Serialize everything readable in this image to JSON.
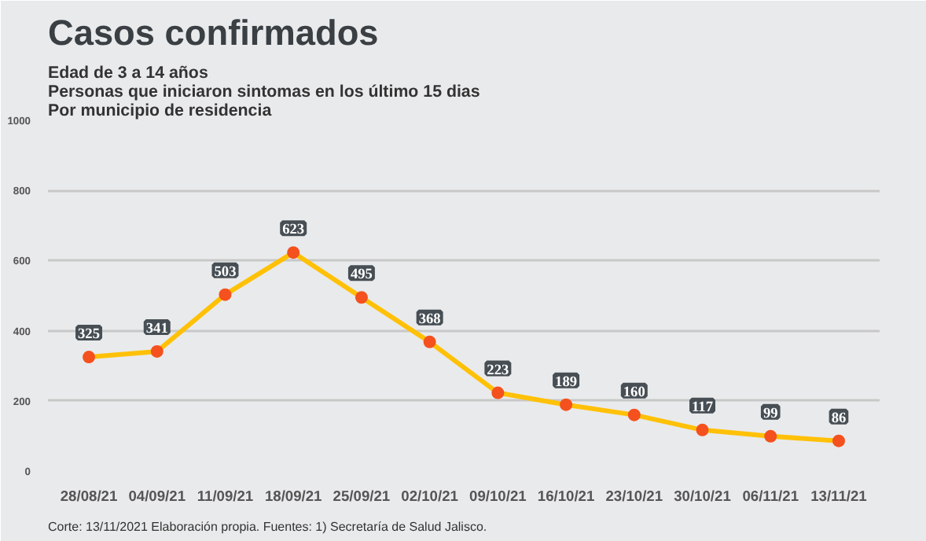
{
  "chart_data": {
    "type": "line",
    "title": "Casos confirmados",
    "subtitle": "Edad de 3 a 14 años\nPersonas que iniciaron sintomas en los último 15 dias\nPor municipio de residencia",
    "categories": [
      "28/08/21",
      "04/09/21",
      "11/09/21",
      "18/09/21",
      "25/09/21",
      "02/10/21",
      "09/10/21",
      "16/10/21",
      "23/10/21",
      "30/10/21",
      "06/11/21",
      "13/11/21"
    ],
    "series": [
      {
        "color": "#ffc107",
        "values": [
          325,
          341,
          503,
          623,
          495,
          368,
          223,
          189,
          160,
          117,
          99,
          86
        ]
      }
    ],
    "marker": "circle",
    "ylim": [
      0,
      1000
    ],
    "yticks": [
      0,
      200,
      400,
      600,
      800,
      1000
    ],
    "grid": "y",
    "data_labels": true,
    "annotations": [
      "Corte: 13/11/2021  Elaboración propia.  Fuentes:  1) Secretaría de Salud Jalisco."
    ]
  }
}
